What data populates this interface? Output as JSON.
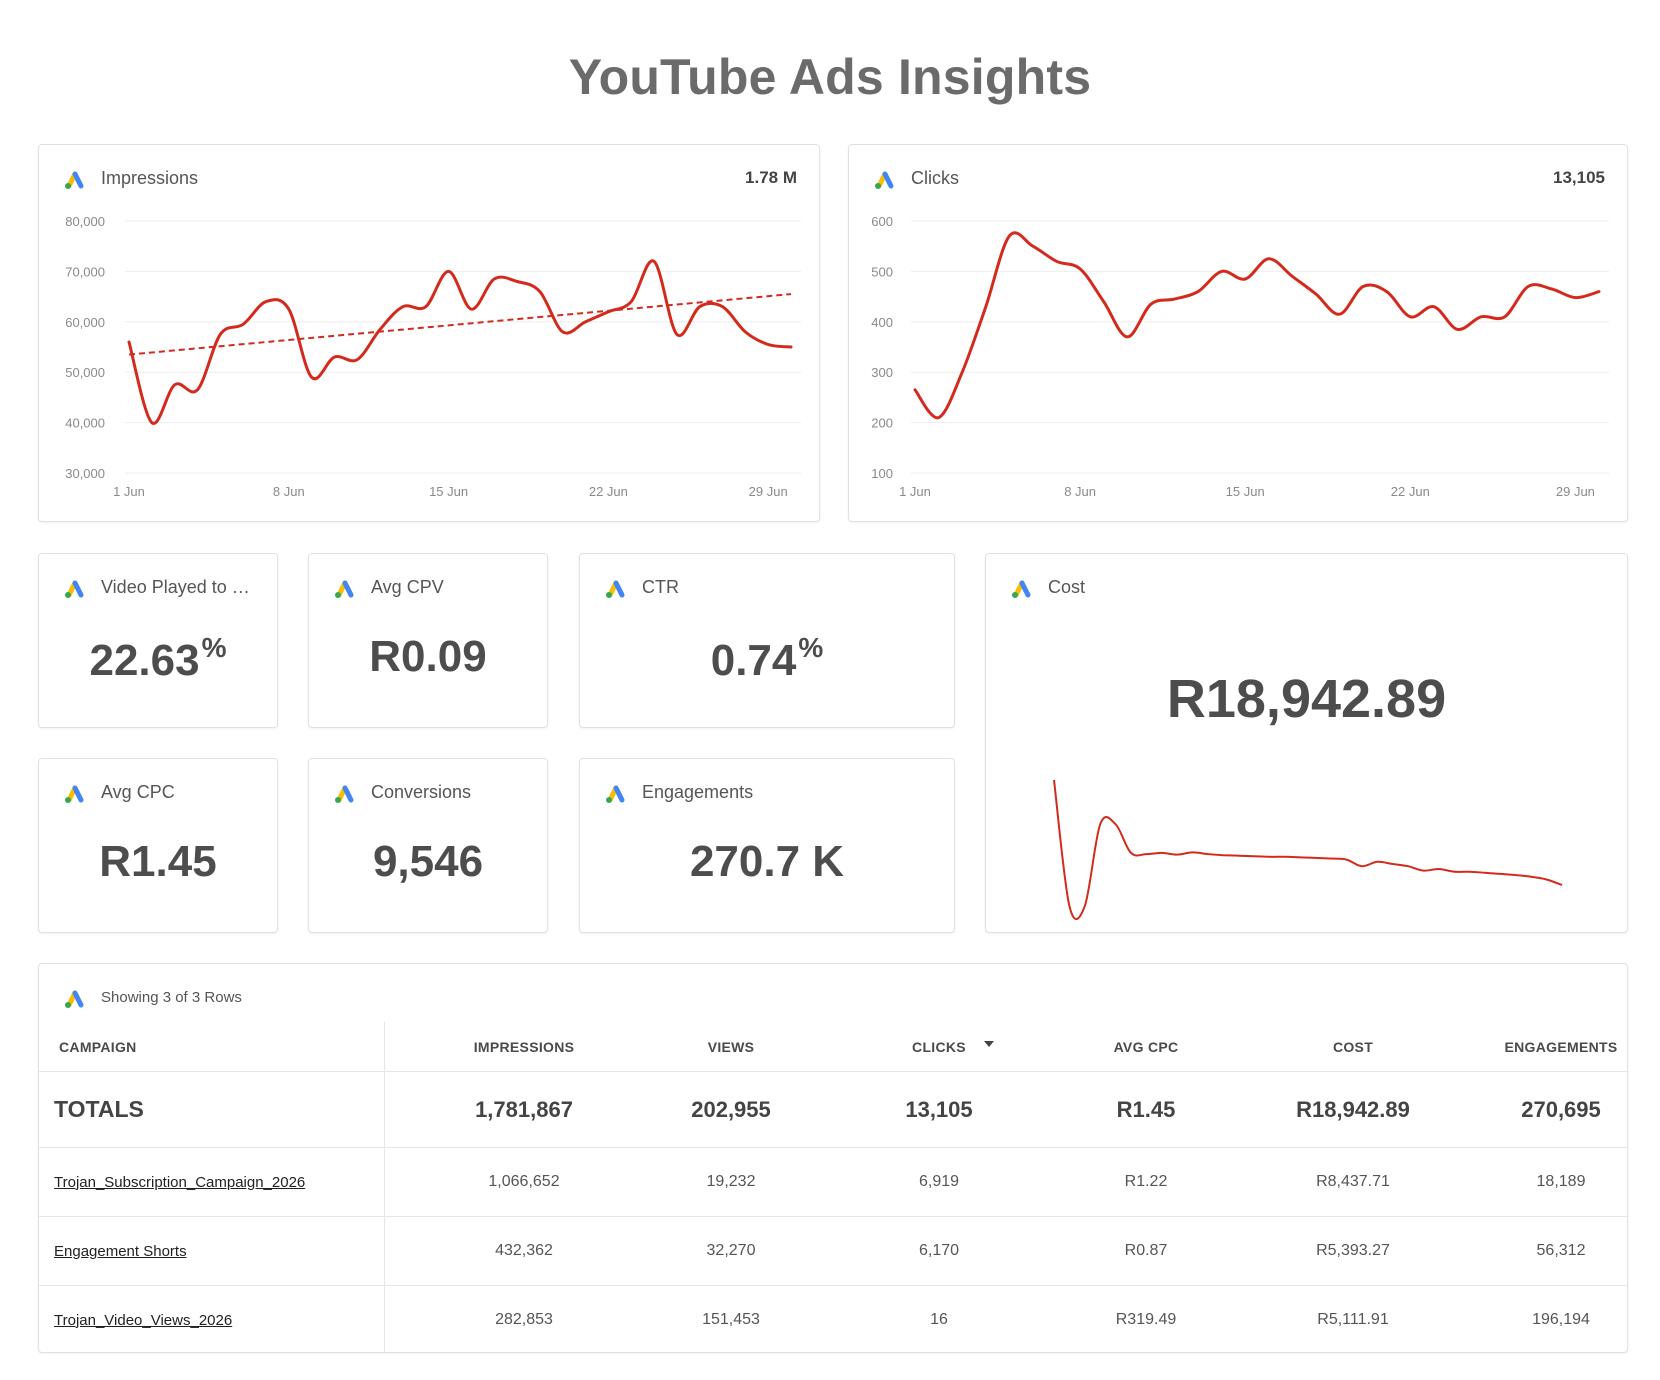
{
  "page": {
    "title": "YouTube Ads Insights"
  },
  "colors": {
    "line": "#d42a1e",
    "grid": "#eeeeee",
    "axis_text": "#8a8a8a"
  },
  "icons": {
    "card_logo": "google-ads-logo-icon",
    "sort": "caret-down-icon"
  },
  "charts": {
    "impressions": {
      "title": "Impressions",
      "total": "1.78 M"
    },
    "clicks": {
      "title": "Clicks",
      "total": "13,105"
    },
    "cost": {
      "title": "Cost",
      "value": "R18,942.89"
    }
  },
  "kpis": {
    "video_played": {
      "title": "Video Played to 1…",
      "value": "22.63",
      "unit": "%"
    },
    "avg_cpv": {
      "title": "Avg CPV",
      "value": "R0.09"
    },
    "ctr": {
      "title": "CTR",
      "value": "0.74",
      "unit": "%"
    },
    "avg_cpc": {
      "title": "Avg CPC",
      "value": "R1.45"
    },
    "conversions": {
      "title": "Conversions",
      "value": "9,546"
    },
    "engagements": {
      "title": "Engagements",
      "value": "270.7 K"
    }
  },
  "table": {
    "caption": "Showing 3 of 3 Rows",
    "headers": [
      "CAMPAIGN",
      "IMPRESSIONS",
      "VIEWS",
      "CLICKS",
      "AVG CPC",
      "COST",
      "ENGAGEMENTS"
    ],
    "sorted_column": "CLICKS",
    "totals": [
      "TOTALS",
      "1,781,867",
      "202,955",
      "13,105",
      "R1.45",
      "R18,942.89",
      "270,695"
    ],
    "rows": [
      [
        "Trojan_Subscription_Campaign_2026",
        "1,066,652",
        "19,232",
        "6,919",
        "R1.22",
        "R8,437.71",
        "18,189"
      ],
      [
        "Engagement Shorts",
        "432,362",
        "32,270",
        "6,170",
        "R0.87",
        "R5,393.27",
        "56,312"
      ],
      [
        "Trojan_Video_Views_2026",
        "282,853",
        "151,453",
        "16",
        "R319.49",
        "R5,111.91",
        "196,194"
      ]
    ]
  },
  "chart_data": [
    {
      "type": "line",
      "title": "Impressions",
      "x": [
        "1 Jun",
        "2 Jun",
        "3 Jun",
        "4 Jun",
        "5 Jun",
        "6 Jun",
        "7 Jun",
        "8 Jun",
        "9 Jun",
        "10 Jun",
        "11 Jun",
        "12 Jun",
        "13 Jun",
        "14 Jun",
        "15 Jun",
        "16 Jun",
        "17 Jun",
        "18 Jun",
        "19 Jun",
        "20 Jun",
        "21 Jun",
        "22 Jun",
        "23 Jun",
        "24 Jun",
        "25 Jun",
        "26 Jun",
        "27 Jun",
        "28 Jun",
        "29 Jun",
        "30 Jun"
      ],
      "xticks": [
        "1 Jun",
        "8 Jun",
        "15 Jun",
        "22 Jun",
        "29 Jun"
      ],
      "yticks": [
        "30,000",
        "40,000",
        "50,000",
        "60,000",
        "70,000",
        "80,000"
      ],
      "ylim": [
        30000,
        80000
      ],
      "series": [
        {
          "values": [
            56000,
            40000,
            47500,
            46500,
            57500,
            59500,
            64000,
            62500,
            49000,
            53000,
            52500,
            58500,
            63000,
            63000,
            70000,
            62500,
            68500,
            68000,
            66000,
            58000,
            60000,
            62000,
            64000,
            72000,
            57500,
            63000,
            63000,
            58000,
            55500,
            55000
          ]
        }
      ],
      "trendline": {
        "start": 53500,
        "end": 65500,
        "style": "dashed"
      },
      "grid": true
    },
    {
      "type": "line",
      "title": "Clicks",
      "x": [
        "1 Jun",
        "2 Jun",
        "3 Jun",
        "4 Jun",
        "5 Jun",
        "6 Jun",
        "7 Jun",
        "8 Jun",
        "9 Jun",
        "10 Jun",
        "11 Jun",
        "12 Jun",
        "13 Jun",
        "14 Jun",
        "15 Jun",
        "16 Jun",
        "17 Jun",
        "18 Jun",
        "19 Jun",
        "20 Jun",
        "21 Jun",
        "22 Jun",
        "23 Jun",
        "24 Jun",
        "25 Jun",
        "26 Jun",
        "27 Jun",
        "28 Jun",
        "29 Jun",
        "30 Jun"
      ],
      "xticks": [
        "1 Jun",
        "8 Jun",
        "15 Jun",
        "22 Jun",
        "29 Jun"
      ],
      "yticks": [
        "100",
        "200",
        "300",
        "400",
        "500",
        "600"
      ],
      "ylim": [
        100,
        600
      ],
      "series": [
        {
          "values": [
            265,
            210,
            300,
            430,
            570,
            550,
            520,
            505,
            440,
            370,
            435,
            445,
            460,
            500,
            485,
            525,
            490,
            455,
            415,
            470,
            460,
            410,
            430,
            385,
            410,
            410,
            470,
            465,
            448,
            460
          ]
        }
      ],
      "grid": true
    },
    {
      "type": "line",
      "title": "Cost",
      "series": [
        {
          "values": [
            1150,
            10,
            10,
            750,
            750,
            490,
            480,
            490,
            475,
            495,
            480,
            470,
            465,
            460,
            455,
            455,
            450,
            445,
            440,
            430,
            370,
            410,
            390,
            370,
            330,
            345,
            320,
            320,
            310,
            300,
            290,
            275,
            250,
            200
          ]
        }
      ],
      "grid": false,
      "axes": false
    }
  ]
}
